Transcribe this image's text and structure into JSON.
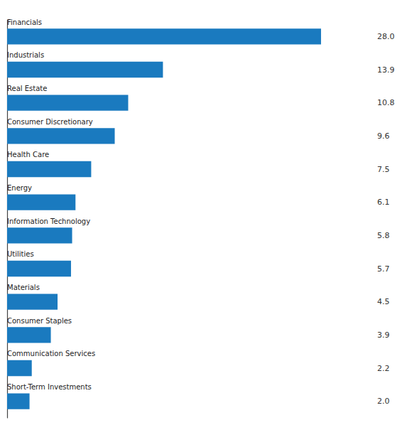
{
  "chart_data": {
    "type": "bar",
    "orientation": "horizontal",
    "categories": [
      "Financials",
      "Industrials",
      "Real Estate",
      "Consumer Discretionary",
      "Health Care",
      "Energy",
      "Information Technology",
      "Utilities",
      "Materials",
      "Consumer Staples",
      "Communication Services",
      "Short-Term Investments"
    ],
    "values": [
      28.0,
      13.9,
      10.8,
      9.6,
      7.5,
      6.1,
      5.8,
      5.7,
      4.5,
      3.9,
      2.2,
      2.0
    ],
    "value_labels": [
      "28.0",
      "13.9",
      "10.8",
      "9.6",
      "7.5",
      "6.1",
      "5.8",
      "5.7",
      "4.5",
      "3.9",
      "2.2",
      "2.0"
    ],
    "color": "#1a7abf",
    "xlim": [
      0,
      32.5
    ],
    "data_labels": true,
    "tick_labels": false,
    "grid": false
  }
}
